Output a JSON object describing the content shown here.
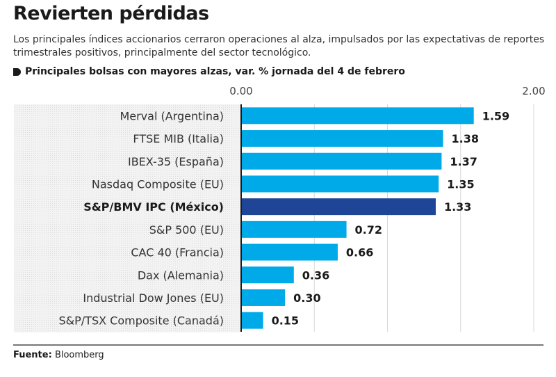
{
  "header": {
    "title": "Revierten pérdidas",
    "subtitle": "Los principales índices accionarios cerraron operaciones al alza, impulsados por las expectativas de reportes trimestrales positivos, principalmente del sector tecnológico.",
    "chart_label": "Principales bolsas con mayores alzas, var. % jornada del 4 de febrero",
    "marker_icon": "tag-marker-icon"
  },
  "footer": {
    "source_label": "Fuente:",
    "source_value": "Bloomberg"
  },
  "colors": {
    "bar": "#00a9e8",
    "bar_highlight": "#1f4597",
    "axis": "#1a1a1a",
    "grid": "#d8d8d8"
  },
  "chart_data": {
    "type": "bar",
    "orientation": "horizontal",
    "title": "Principales bolsas con mayores alzas, var. % jornada del 4 de febrero",
    "xlabel": "",
    "ylabel": "",
    "xlim": [
      0,
      2.0
    ],
    "tick_labels": [
      "0.00",
      "2.00"
    ],
    "grid": true,
    "grid_step": 0.5,
    "categories": [
      "Merval (Argentina)",
      "FTSE MIB (Italia)",
      "IBEX-35 (España)",
      "Nasdaq Composite (EU)",
      "S&P/BMV IPC (México)",
      "S&P 500 (EU)",
      "CAC 40 (Francia)",
      "Dax (Alemania)",
      "Industrial Dow Jones (EU)",
      "S&P/TSX Composite (Canadá)"
    ],
    "values": [
      1.59,
      1.38,
      1.37,
      1.35,
      1.33,
      0.72,
      0.66,
      0.36,
      0.3,
      0.15
    ],
    "value_labels": [
      "1.59",
      "1.38",
      "1.37",
      "1.35",
      "1.33",
      "0.72",
      "0.66",
      "0.36",
      "0.30",
      "0.15"
    ],
    "highlight": "S&P/BMV IPC (México)"
  }
}
